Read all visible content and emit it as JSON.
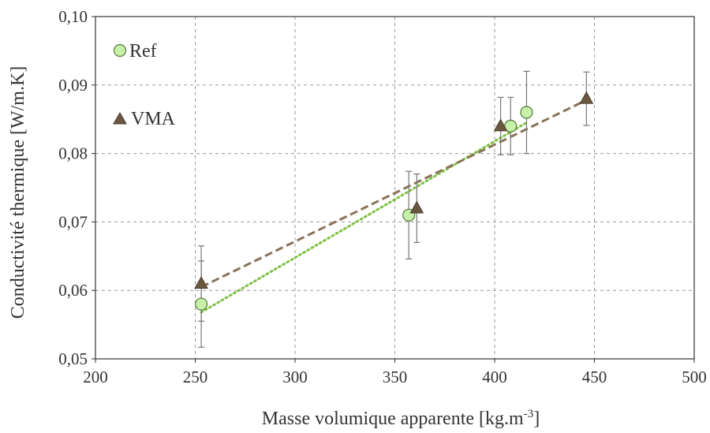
{
  "chart_data": {
    "type": "scatter",
    "title": "",
    "xlabel": "Masse volumique apparente [kg.m",
    "xlabel_sup": "-3",
    "xlabel_end": "]",
    "ylabel": "Conductivité thermique [W/m.K]",
    "xlim": [
      200,
      500
    ],
    "ylim": [
      0.05,
      0.1
    ],
    "x_ticks": [
      200,
      250,
      300,
      350,
      400,
      450,
      500
    ],
    "x_tick_labels": [
      "200",
      "250",
      "300",
      "350",
      "400",
      "450",
      "500"
    ],
    "y_ticks": [
      0.05,
      0.06,
      0.07,
      0.08,
      0.09,
      0.1
    ],
    "y_tick_labels": [
      "0,05",
      "0,06",
      "0,07",
      "0,08",
      "0,09",
      "0,10"
    ],
    "grid": true,
    "legend_position": "top-left",
    "series": [
      {
        "name": "Ref",
        "marker": "circle",
        "marker_fill": "#c9f0a8",
        "marker_stroke": "#4f7a3a",
        "trend_color": "#7dc142",
        "trend_style": "dotted",
        "trendline": [
          [
            253,
            0.0568
          ],
          [
            416,
            0.0845
          ]
        ],
        "points": [
          {
            "x": 253,
            "y": 0.058,
            "err": 0.0063
          },
          {
            "x": 357,
            "y": 0.071,
            "err": 0.0064
          },
          {
            "x": 408,
            "y": 0.084,
            "err": 0.0042
          },
          {
            "x": 416,
            "y": 0.086,
            "err": 0.006
          }
        ]
      },
      {
        "name": "VMA",
        "marker": "triangle",
        "marker_fill": "#6b5740",
        "marker_stroke": "#4a3b2a",
        "trend_color": "#8a7358",
        "trend_style": "dashed",
        "trendline": [
          [
            253,
            0.0605
          ],
          [
            446,
            0.0878
          ]
        ],
        "points": [
          {
            "x": 253,
            "y": 0.061,
            "err": 0.0055
          },
          {
            "x": 361,
            "y": 0.072,
            "err": 0.005
          },
          {
            "x": 403,
            "y": 0.084,
            "err": 0.0042
          },
          {
            "x": 446,
            "y": 0.088,
            "err": 0.0039
          }
        ]
      }
    ]
  }
}
